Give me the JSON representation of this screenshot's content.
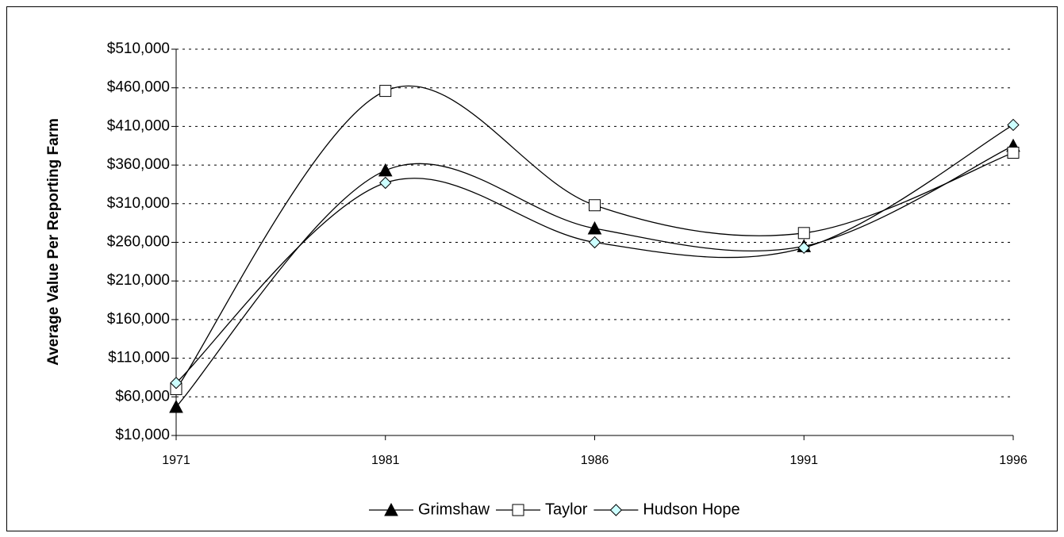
{
  "chart_data": {
    "type": "line",
    "y_label": "Average Value Per Reporting Farm",
    "categories": [
      "1971",
      "1981",
      "1986",
      "1991",
      "1996"
    ],
    "series": [
      {
        "name": "Grimshaw",
        "color": "#000000",
        "marker": "triangle",
        "values": [
          47000,
          353000,
          278000,
          255000,
          385000
        ]
      },
      {
        "name": "Taylor",
        "color": "#000000",
        "marker": "square",
        "values": [
          70000,
          456000,
          308000,
          272000,
          376000
        ]
      },
      {
        "name": "Hudson Hope",
        "color": "#000000",
        "marker": "diamond",
        "values": [
          78000,
          337000,
          260000,
          253000,
          412000
        ]
      }
    ],
    "ylim": [
      10000,
      510000
    ],
    "yticks": [
      {
        "value": 10000,
        "label": "$10,000"
      },
      {
        "value": 60000,
        "label": "$60,000"
      },
      {
        "value": 110000,
        "label": "$110,000"
      },
      {
        "value": 160000,
        "label": "$160,000"
      },
      {
        "value": 210000,
        "label": "$210,000"
      },
      {
        "value": 260000,
        "label": "$260,000"
      },
      {
        "value": 310000,
        "label": "$310,000"
      },
      {
        "value": 360000,
        "label": "$360,000"
      },
      {
        "value": 410000,
        "label": "$410,000"
      },
      {
        "value": 460000,
        "label": "$460,000"
      },
      {
        "value": 510000,
        "label": "$510,000"
      }
    ],
    "grid": true,
    "smooth": true,
    "legend": "bottom"
  }
}
